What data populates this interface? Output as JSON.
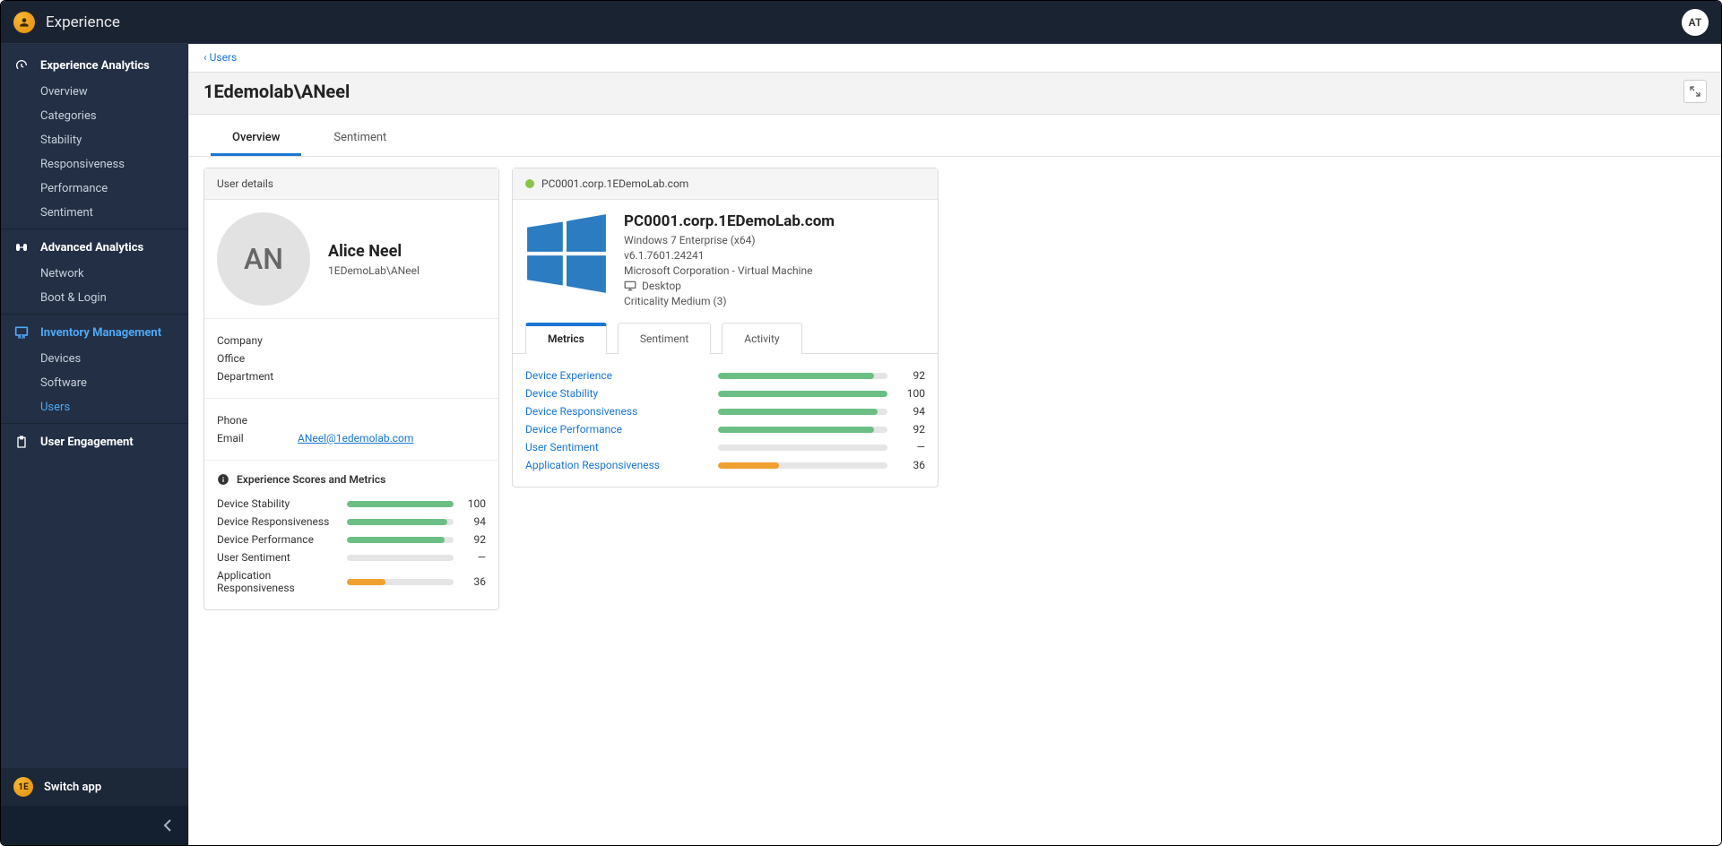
{
  "brand": "Experience",
  "top_user_initials": "AT",
  "nav": {
    "experience_analytics": {
      "label": "Experience Analytics",
      "items": [
        {
          "label": "Overview",
          "active": false
        },
        {
          "label": "Categories",
          "active": false
        },
        {
          "label": "Stability",
          "active": false
        },
        {
          "label": "Responsiveness",
          "active": false
        },
        {
          "label": "Performance",
          "active": false
        },
        {
          "label": "Sentiment",
          "active": false
        }
      ]
    },
    "advanced_analytics": {
      "label": "Advanced Analytics",
      "items": [
        {
          "label": "Network",
          "active": false
        },
        {
          "label": "Boot & Login",
          "active": false
        }
      ]
    },
    "inventory_management": {
      "label": "Inventory Management",
      "active": true,
      "items": [
        {
          "label": "Devices",
          "active": false
        },
        {
          "label": "Software",
          "active": false
        },
        {
          "label": "Users",
          "active": true
        }
      ]
    },
    "user_engagement": {
      "label": "User Engagement"
    },
    "switch_app": "Switch app"
  },
  "breadcrumb": {
    "parent": "Users"
  },
  "page_title": "1Edemolab\\ANeel",
  "page_tabs": {
    "overview": "Overview",
    "sentiment": "Sentiment",
    "active": "overview"
  },
  "user_card": {
    "header": "User details",
    "avatar_initials": "AN",
    "name": "Alice Neel",
    "account": "1EDemoLab\\ANeel",
    "fields": {
      "company": {
        "label": "Company",
        "value": ""
      },
      "office": {
        "label": "Office",
        "value": ""
      },
      "department": {
        "label": "Department",
        "value": ""
      },
      "phone": {
        "label": "Phone",
        "value": ""
      },
      "email": {
        "label": "Email",
        "value": "ANeel@1edemolab.com"
      }
    },
    "scores_header": "Experience Scores and Metrics",
    "scores": [
      {
        "label": "Device Stability",
        "value": 100,
        "display": "100",
        "color": "#6cbf84"
      },
      {
        "label": "Device Responsiveness",
        "value": 94,
        "display": "94",
        "color": "#6cbf84"
      },
      {
        "label": "Device Performance",
        "value": 92,
        "display": "92",
        "color": "#6cbf84"
      },
      {
        "label": "User Sentiment",
        "value": 0,
        "display": "—",
        "color": "#e5e5e5"
      },
      {
        "label": "Application Responsiveness",
        "value": 36,
        "display": "36",
        "color": "#f0a030"
      }
    ]
  },
  "device_card": {
    "header_fqdn": "PC0001.corp.1EDemoLab.com",
    "title": "PC0001.corp.1EDemoLab.com",
    "os": "Windows 7 Enterprise (x64)",
    "build": "v6.1.7601.24241",
    "manufacturer": "Microsoft Corporation - Virtual Machine",
    "chassis": "Desktop",
    "criticality": "Criticality Medium (3)",
    "windows_logo_color": "#2b7cc1",
    "sub_tabs": {
      "metrics": "Metrics",
      "sentiment": "Sentiment",
      "activity": "Activity",
      "active": "metrics"
    },
    "metrics": [
      {
        "label": "Device Experience",
        "value": 92,
        "display": "92",
        "color": "#6cbf84"
      },
      {
        "label": "Device Stability",
        "value": 100,
        "display": "100",
        "color": "#6cbf84"
      },
      {
        "label": "Device Responsiveness",
        "value": 94,
        "display": "94",
        "color": "#6cbf84"
      },
      {
        "label": "Device Performance",
        "value": 92,
        "display": "92",
        "color": "#6cbf84"
      },
      {
        "label": "User Sentiment",
        "value": 0,
        "display": "—",
        "color": "#e5e5e5"
      },
      {
        "label": "Application Responsiveness",
        "value": 36,
        "display": "36",
        "color": "#f0a030"
      }
    ]
  },
  "colors": {
    "bar_bg": "#e5e5e5",
    "link": "#1976d2",
    "green": "#6cbf84",
    "orange": "#f0a030"
  }
}
